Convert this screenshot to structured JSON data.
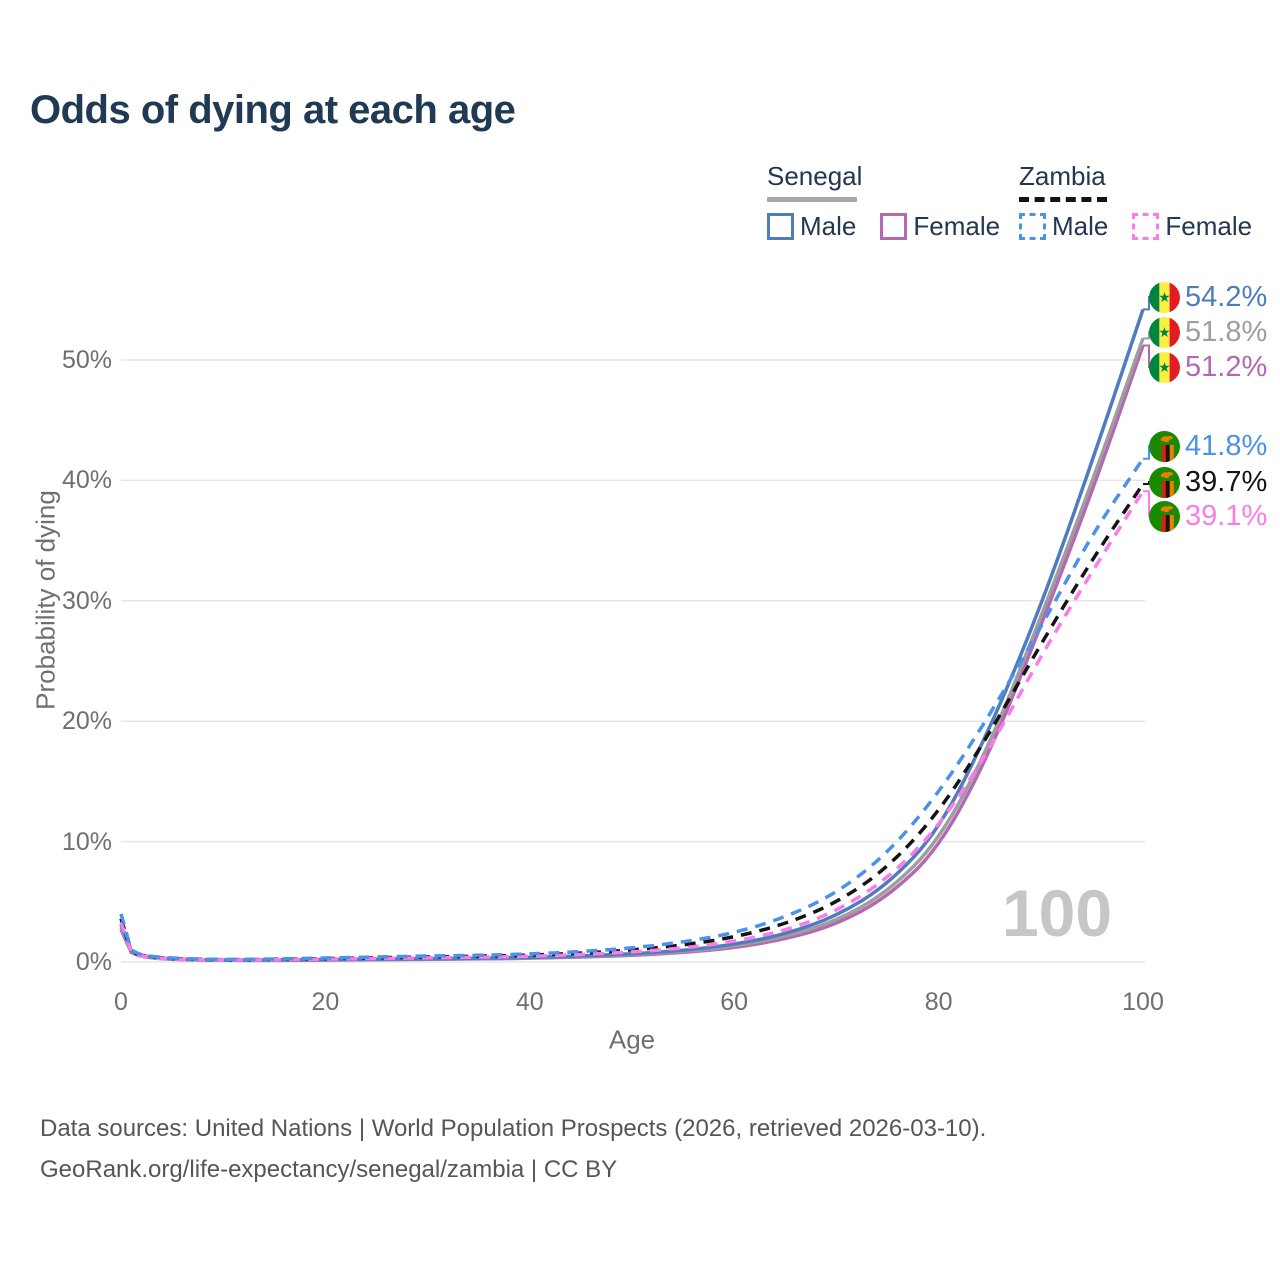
{
  "title": "Odds of dying at each age",
  "watermark": "100",
  "legend": {
    "senegal": {
      "label": "Senegal",
      "male_label": "Male",
      "female_label": "Female"
    },
    "zambia": {
      "label": "Zambia",
      "male_label": "Male",
      "female_label": "Female"
    }
  },
  "y_axis": {
    "title": "Probability of dying"
  },
  "x_axis": {
    "title": "Age"
  },
  "end_labels": [
    {
      "id": "senegal-male",
      "text": "54.2%"
    },
    {
      "id": "senegal-average",
      "text": "51.8%"
    },
    {
      "id": "senegal-female",
      "text": "51.2%"
    },
    {
      "id": "zambia-male",
      "text": "41.8%"
    },
    {
      "id": "zambia-average",
      "text": "39.7%"
    },
    {
      "id": "zambia-female",
      "text": "39.1%"
    }
  ],
  "footer": {
    "line1": "Data sources: United Nations | World Population Prospects (2026, retrieved 2026-03-10).",
    "line2": "GeoRank.org/life-expectancy/senegal/zambia | CC BY"
  },
  "colors": {
    "senegal_male": "#4f7cbe",
    "senegal_average": "#9e9e9e",
    "senegal_female": "#b468b2",
    "zambia_male": "#4c92ea",
    "zambia_average": "#141414",
    "zambia_female": "#fb7ce8",
    "grid": "#e6e6e6",
    "axis_text": "#6f6f6f",
    "title": "#203a54",
    "legend_text": "#233750",
    "watermark": "#c6c6c6",
    "footer": "#565656",
    "senegal_header_line": "#a8a8a8",
    "zambia_header_line": "#141414"
  },
  "chart_data": {
    "type": "line",
    "title": "Odds of dying at each age",
    "xlabel": "Age",
    "ylabel": "Probability of dying",
    "xlim": [
      0,
      100
    ],
    "ylim": [
      0,
      56
    ],
    "x_ticks": [
      0,
      20,
      40,
      60,
      80,
      100
    ],
    "y_ticks": [
      0,
      10,
      20,
      30,
      40,
      50
    ],
    "y_tick_suffix": "%",
    "grid": "horizontal",
    "legend_position": "top-right",
    "highlighted_age": 100,
    "x": [
      0,
      1,
      2,
      5,
      10,
      15,
      20,
      25,
      30,
      35,
      40,
      45,
      50,
      55,
      60,
      65,
      70,
      75,
      80,
      85,
      90,
      95,
      100
    ],
    "series": [
      {
        "id": "senegal-male",
        "country": "Senegal",
        "sex": "Male",
        "color": "#4f7cbe",
        "dashed": false,
        "values": [
          3.1,
          0.9,
          0.5,
          0.25,
          0.15,
          0.17,
          0.2,
          0.23,
          0.27,
          0.31,
          0.38,
          0.5,
          0.68,
          0.95,
          1.45,
          2.3,
          3.8,
          6.4,
          10.9,
          19.3,
          29.5,
          41.5,
          54.2
        ],
        "end_label": "54.2%"
      },
      {
        "id": "senegal-average",
        "country": "Senegal",
        "sex": "Both",
        "color": "#9e9e9e",
        "dashed": false,
        "values": [
          2.9,
          0.85,
          0.46,
          0.22,
          0.14,
          0.15,
          0.18,
          0.21,
          0.24,
          0.28,
          0.34,
          0.45,
          0.61,
          0.86,
          1.3,
          2.1,
          3.4,
          5.8,
          10.0,
          18.0,
          28.6,
          39.8,
          51.8
        ],
        "end_label": "51.8%"
      },
      {
        "id": "senegal-female",
        "country": "Senegal",
        "sex": "Female",
        "color": "#b468b2",
        "dashed": false,
        "values": [
          2.7,
          0.8,
          0.42,
          0.2,
          0.13,
          0.14,
          0.16,
          0.19,
          0.22,
          0.25,
          0.31,
          0.41,
          0.55,
          0.78,
          1.17,
          1.9,
          3.1,
          5.4,
          9.4,
          17.3,
          27.9,
          39.0,
          51.2
        ],
        "end_label": "51.2%"
      },
      {
        "id": "zambia-male",
        "country": "Zambia",
        "sex": "Male",
        "color": "#4c92ea",
        "dashed": true,
        "values": [
          4.0,
          1.0,
          0.55,
          0.3,
          0.2,
          0.25,
          0.33,
          0.42,
          0.5,
          0.56,
          0.66,
          0.86,
          1.16,
          1.65,
          2.4,
          3.7,
          5.7,
          9.0,
          14.0,
          20.5,
          27.8,
          35.5,
          41.8
        ],
        "end_label": "41.8%"
      },
      {
        "id": "zambia-average",
        "country": "Zambia",
        "sex": "Both",
        "color": "#141414",
        "dashed": true,
        "values": [
          3.6,
          0.9,
          0.5,
          0.27,
          0.18,
          0.22,
          0.28,
          0.35,
          0.42,
          0.48,
          0.56,
          0.73,
          0.99,
          1.4,
          2.05,
          3.15,
          4.9,
          7.8,
          12.4,
          19.0,
          26.4,
          33.4,
          39.7
        ],
        "end_label": "39.7%"
      },
      {
        "id": "zambia-female",
        "country": "Zambia",
        "sex": "Female",
        "color": "#fb7ce8",
        "dashed": true,
        "values": [
          3.3,
          0.85,
          0.46,
          0.24,
          0.16,
          0.19,
          0.24,
          0.29,
          0.35,
          0.4,
          0.47,
          0.62,
          0.83,
          1.15,
          1.7,
          2.6,
          4.2,
          6.9,
          11.2,
          17.7,
          25.4,
          32.4,
          39.1
        ],
        "end_label": "39.1%"
      }
    ]
  }
}
